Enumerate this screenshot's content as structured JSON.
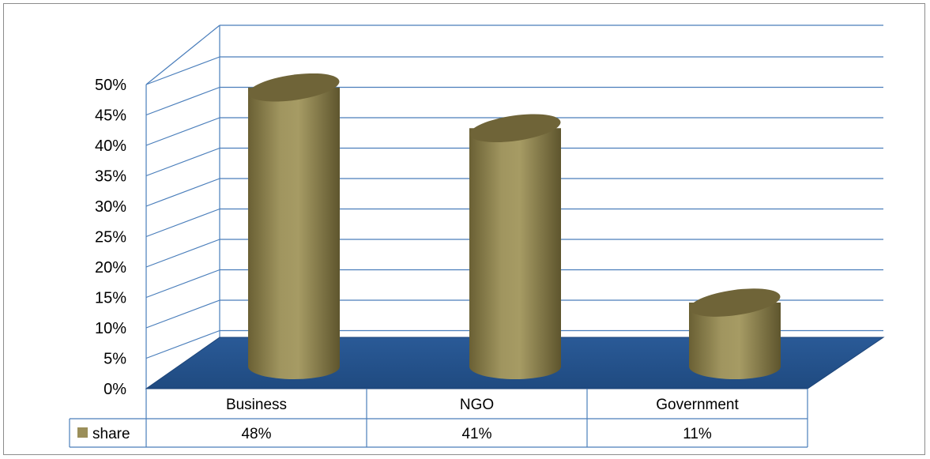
{
  "chart_data": {
    "type": "bar",
    "style": "3d-cylinder",
    "categories": [
      "Business",
      "NGO",
      "Government"
    ],
    "series": [
      {
        "name": "share",
        "values": [
          48,
          41,
          11
        ],
        "labels": [
          "48%",
          "41%",
          "11%"
        ]
      }
    ],
    "y_ticks": [
      "0%",
      "5%",
      "10%",
      "15%",
      "20%",
      "25%",
      "30%",
      "35%",
      "40%",
      "45%",
      "50%"
    ],
    "ylim": [
      0,
      50
    ],
    "y_unit": "%",
    "grid": true,
    "data_table": true,
    "legend_key_in_table": true,
    "colors": {
      "bar": "#9b8f5a",
      "bar_dark": "#6f6438",
      "floor": "#2b5d9c",
      "grid": "#4a7ebb",
      "table_border": "#4a7ebb"
    }
  }
}
